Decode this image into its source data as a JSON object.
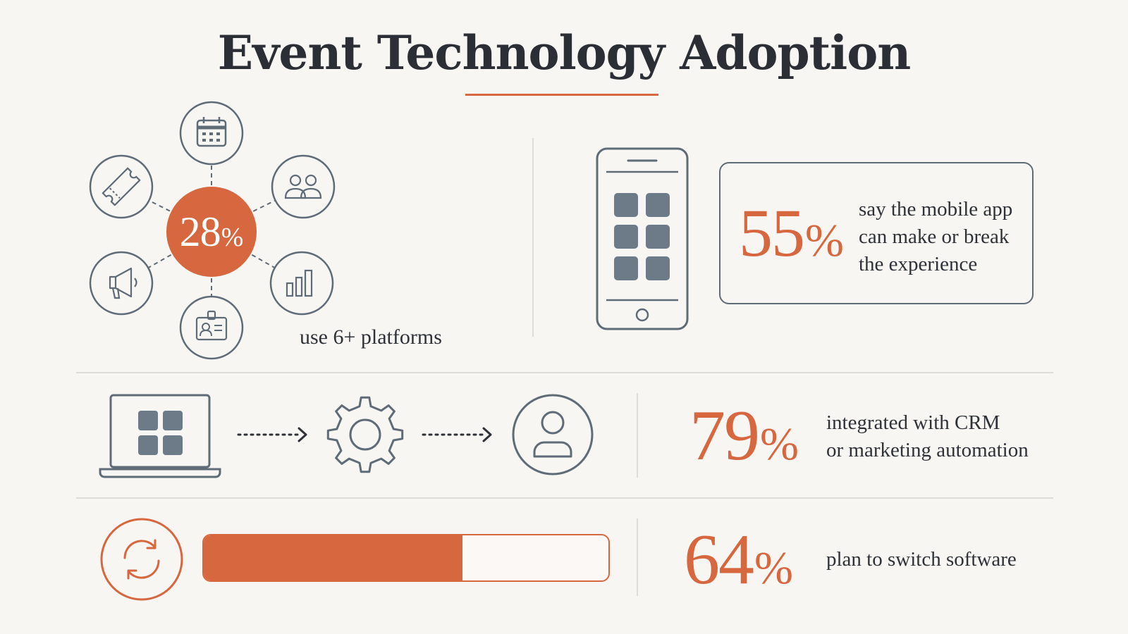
{
  "title": "Event Technology Adoption",
  "colors": {
    "accent": "#d6673f",
    "ink": "#5f6b77",
    "background": "#f7f6f3",
    "divider": "#dedcd6"
  },
  "platforms": {
    "value": "28",
    "sign": "%",
    "label": "use 6+ platforms",
    "icons": [
      "calendar-icon",
      "people-icon",
      "bar-chart-icon",
      "badge-icon",
      "megaphone-icon",
      "ticket-icon"
    ]
  },
  "mobile": {
    "value": "55",
    "sign": "%",
    "lines": [
      "say the mobile app",
      "can make or break",
      "the experience"
    ],
    "icon": "smartphone-icon"
  },
  "integration": {
    "value": "79",
    "sign": "%",
    "lines": [
      "integrated with CRM",
      "or marketing automation"
    ],
    "icons": [
      "laptop-icon",
      "gear-icon",
      "user-icon"
    ]
  },
  "switching": {
    "value": "64",
    "sign": "%",
    "label": "plan to switch software",
    "progress": 0.64,
    "icon": "sync-icon"
  }
}
